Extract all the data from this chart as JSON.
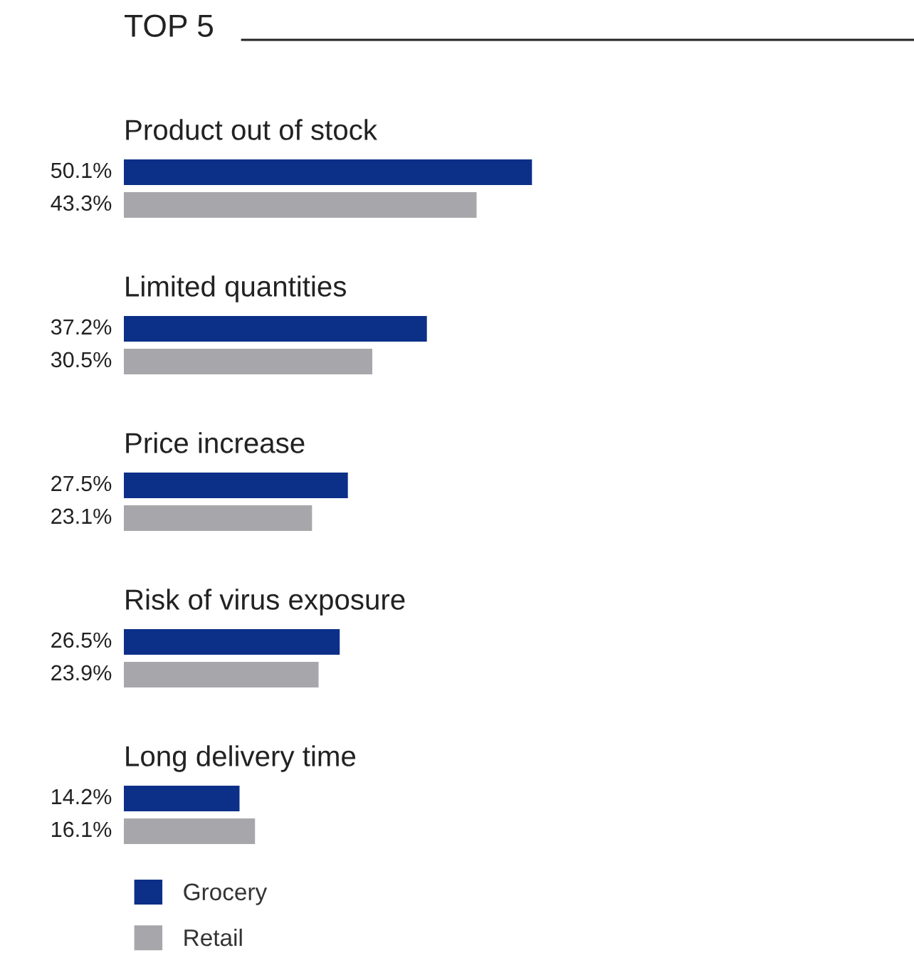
{
  "chart_data": {
    "type": "bar",
    "orientation": "horizontal",
    "title": "TOP 5",
    "categories": [
      "Product out of stock",
      "Limited quantities",
      "Price increase",
      "Risk of virus exposure",
      "Long delivery time"
    ],
    "series": [
      {
        "name": "Grocery",
        "color": "#0c2f88",
        "values": [
          50.1,
          37.2,
          27.5,
          26.5,
          14.2
        ],
        "value_labels": [
          "50.1%",
          "37.2%",
          "27.5%",
          "26.5%",
          "14.2%"
        ]
      },
      {
        "name": "Retail",
        "color": "#a7a7ab",
        "values": [
          43.3,
          30.5,
          23.1,
          23.9,
          16.1
        ],
        "value_labels": [
          "43.3%",
          "30.5%",
          "23.1%",
          "23.9%",
          "16.1%"
        ]
      }
    ],
    "xlim": [
      0,
      97
    ],
    "tick_labels": false,
    "legend": "bottom left"
  }
}
